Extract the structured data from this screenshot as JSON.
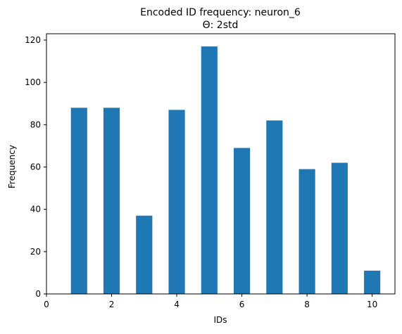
{
  "chart_data": {
    "type": "bar",
    "title": "Encoded ID frequency: neuron_6",
    "subtitle": "Θ: 2std",
    "xlabel": "IDs",
    "ylabel": "Frequency",
    "x": [
      1,
      2,
      3,
      4,
      5,
      6,
      7,
      8,
      9,
      10
    ],
    "values": [
      88,
      88,
      37,
      87,
      117,
      69,
      82,
      59,
      62,
      11
    ],
    "bar_width": 0.5,
    "xlim": [
      0,
      10.7
    ],
    "ylim": [
      0,
      123
    ],
    "xticks": [
      "0",
      "2",
      "4",
      "6",
      "8",
      "10"
    ],
    "yticks": [
      "0",
      "20",
      "40",
      "60",
      "80",
      "100",
      "120"
    ],
    "bar_color": "#1f77b4",
    "grid": false,
    "legend": "none"
  }
}
